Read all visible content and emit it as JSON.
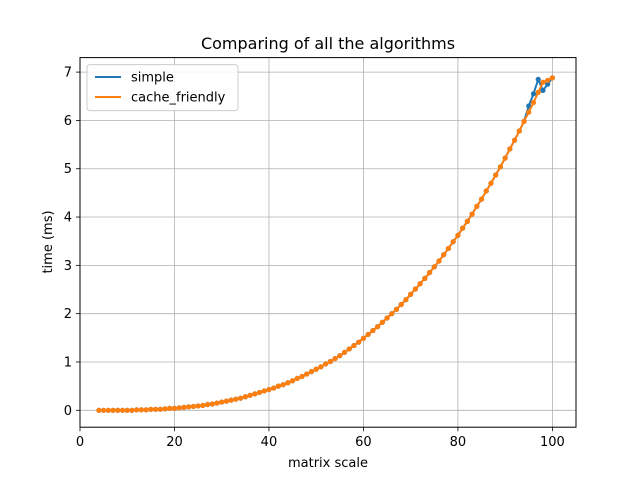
{
  "chart_data": {
    "type": "line",
    "title": "Comparing of all the algorithms",
    "xlabel": "matrix scale",
    "ylabel": "time (ms)",
    "xlim": [
      0,
      105
    ],
    "ylim": [
      -0.35,
      7.3
    ],
    "x_ticks": [
      0,
      20,
      40,
      60,
      80,
      100
    ],
    "y_ticks": [
      0,
      1,
      2,
      3,
      4,
      5,
      6,
      7
    ],
    "grid": true,
    "legend_position": "top-left",
    "x": [
      4,
      5,
      6,
      7,
      8,
      9,
      10,
      11,
      12,
      13,
      14,
      15,
      16,
      17,
      18,
      19,
      20,
      21,
      22,
      23,
      24,
      25,
      26,
      27,
      28,
      29,
      30,
      31,
      32,
      33,
      34,
      35,
      36,
      37,
      38,
      39,
      40,
      41,
      42,
      43,
      44,
      45,
      46,
      47,
      48,
      49,
      50,
      51,
      52,
      53,
      54,
      55,
      56,
      57,
      58,
      59,
      60,
      61,
      62,
      63,
      64,
      65,
      66,
      67,
      68,
      69,
      70,
      71,
      72,
      73,
      74,
      75,
      76,
      77,
      78,
      79,
      80,
      81,
      82,
      83,
      84,
      85,
      86,
      87,
      88,
      89,
      90,
      91,
      92,
      93,
      94,
      95,
      96,
      97,
      98,
      99,
      100
    ],
    "series": [
      {
        "name": "simple",
        "color": "#1f77b4",
        "values": [
          0.0,
          0.0,
          0.0,
          0.0,
          0.0,
          0.0,
          0.0,
          0.0,
          0.01,
          0.01,
          0.01,
          0.02,
          0.02,
          0.02,
          0.03,
          0.04,
          0.04,
          0.05,
          0.06,
          0.07,
          0.08,
          0.09,
          0.1,
          0.12,
          0.13,
          0.15,
          0.17,
          0.19,
          0.21,
          0.23,
          0.25,
          0.28,
          0.31,
          0.34,
          0.37,
          0.4,
          0.43,
          0.46,
          0.5,
          0.53,
          0.57,
          0.61,
          0.66,
          0.7,
          0.75,
          0.8,
          0.85,
          0.9,
          0.96,
          1.01,
          1.07,
          1.13,
          1.2,
          1.27,
          1.34,
          1.41,
          1.49,
          1.57,
          1.65,
          1.73,
          1.82,
          1.91,
          2.0,
          2.09,
          2.19,
          2.29,
          2.4,
          2.51,
          2.62,
          2.73,
          2.85,
          2.97,
          3.09,
          3.22,
          3.35,
          3.49,
          3.62,
          3.77,
          3.91,
          4.06,
          4.22,
          4.37,
          4.54,
          4.7,
          4.87,
          5.04,
          5.22,
          5.41,
          5.59,
          5.78,
          5.98,
          6.3,
          6.55,
          6.85,
          6.62,
          6.75,
          6.88
        ]
      },
      {
        "name": "cache_friendly",
        "color": "#ff7f0e",
        "values": [
          0.0,
          0.0,
          0.0,
          0.0,
          0.0,
          0.0,
          0.0,
          0.0,
          0.01,
          0.01,
          0.01,
          0.02,
          0.02,
          0.02,
          0.03,
          0.04,
          0.04,
          0.05,
          0.06,
          0.07,
          0.08,
          0.09,
          0.1,
          0.12,
          0.13,
          0.15,
          0.17,
          0.19,
          0.21,
          0.23,
          0.25,
          0.28,
          0.31,
          0.34,
          0.37,
          0.4,
          0.43,
          0.46,
          0.5,
          0.53,
          0.57,
          0.61,
          0.66,
          0.7,
          0.75,
          0.8,
          0.85,
          0.9,
          0.96,
          1.01,
          1.07,
          1.13,
          1.2,
          1.27,
          1.34,
          1.41,
          1.49,
          1.57,
          1.65,
          1.73,
          1.82,
          1.91,
          2.0,
          2.09,
          2.19,
          2.29,
          2.4,
          2.51,
          2.62,
          2.73,
          2.85,
          2.97,
          3.09,
          3.22,
          3.35,
          3.49,
          3.62,
          3.77,
          3.91,
          4.06,
          4.22,
          4.37,
          4.54,
          4.7,
          4.87,
          5.04,
          5.22,
          5.41,
          5.59,
          5.78,
          5.98,
          6.17,
          6.37,
          6.58,
          6.79,
          6.83,
          6.88
        ]
      }
    ]
  }
}
